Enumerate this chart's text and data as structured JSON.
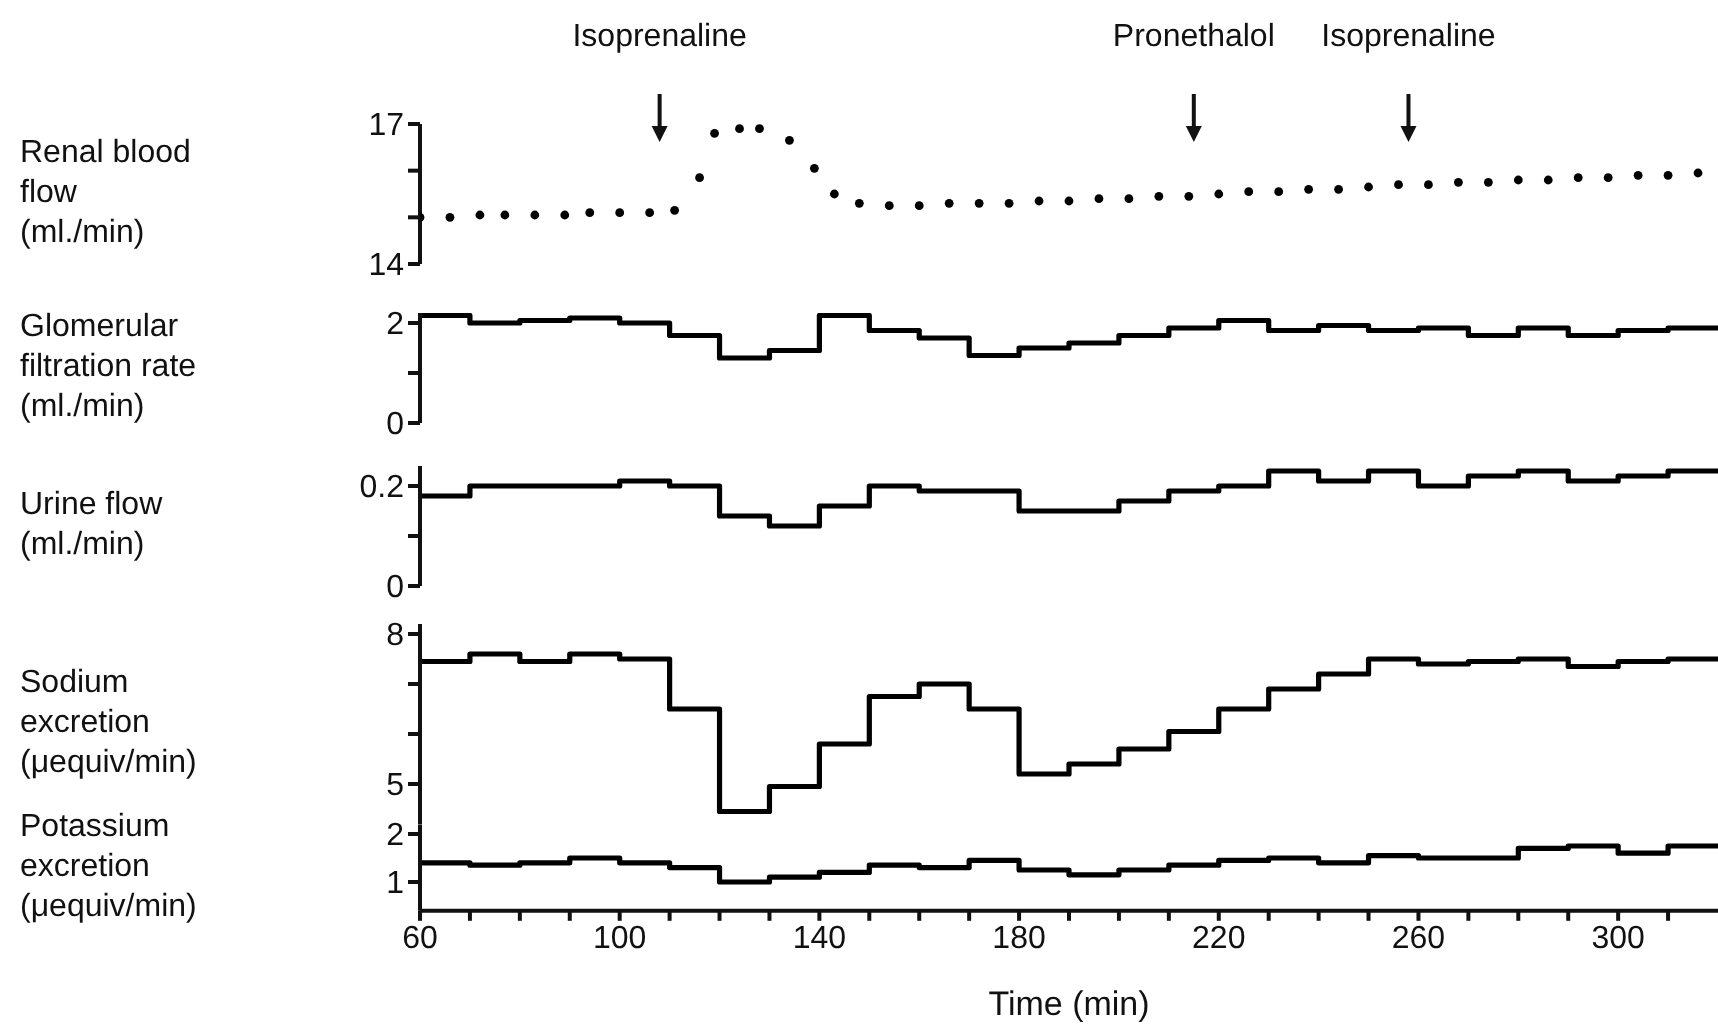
{
  "chart_data": [
    {
      "type": "scatter",
      "ylabel": "Renal blood flow (ml./min)",
      "marker": "circle",
      "tick_labels": "y",
      "xlim": [
        60,
        320
      ],
      "ylim": [
        14,
        17
      ],
      "yticks": [
        14,
        {
          "value": 15,
          "label": null
        },
        {
          "value": 16,
          "label": null
        },
        17
      ],
      "ref_lines": [
        {
          "axis": "x",
          "value": 108,
          "label": "Isoprenaline"
        },
        {
          "axis": "x",
          "value": 215,
          "label": "Pronethalol"
        },
        {
          "axis": "x",
          "value": 258,
          "label": "Isoprenaline"
        }
      ],
      "series": [
        {
          "color": "#000000",
          "x": [
            60,
            66,
            72,
            77,
            83,
            89,
            94,
            100,
            106,
            111,
            116,
            119,
            124,
            128,
            134,
            139,
            143,
            148,
            154,
            160,
            166,
            172,
            178,
            184,
            190,
            196,
            202,
            208,
            214,
            220,
            226,
            232,
            238,
            244,
            250,
            256,
            262,
            268,
            274,
            280,
            286,
            292,
            298,
            304,
            310,
            316
          ],
          "values": [
            15.0,
            15.0,
            15.05,
            15.05,
            15.05,
            15.05,
            15.1,
            15.1,
            15.1,
            15.15,
            15.85,
            16.8,
            16.9,
            16.9,
            16.65,
            16.05,
            15.5,
            15.3,
            15.25,
            15.25,
            15.3,
            15.3,
            15.3,
            15.35,
            15.35,
            15.4,
            15.4,
            15.45,
            15.45,
            15.5,
            15.55,
            15.55,
            15.6,
            15.6,
            15.65,
            15.7,
            15.7,
            15.75,
            15.75,
            15.8,
            15.8,
            15.85,
            15.85,
            15.9,
            15.9,
            15.95
          ]
        }
      ]
    },
    {
      "type": "step",
      "ylabel": "Glomerular filtration rate (ml./min)",
      "tick_labels": "y",
      "xlim": [
        60,
        320
      ],
      "ylim": [
        0,
        2.2
      ],
      "yticks": [
        0,
        {
          "value": 1,
          "label": null
        },
        2
      ],
      "x": [
        60,
        70,
        80,
        90,
        100,
        110,
        120,
        130,
        140,
        150,
        160,
        170,
        180,
        190,
        200,
        210,
        220,
        230,
        240,
        250,
        260,
        270,
        280,
        290,
        300,
        310,
        320
      ],
      "series": [
        {
          "color": "#000000",
          "values": [
            2.15,
            2.0,
            2.05,
            2.1,
            2.0,
            1.75,
            1.3,
            1.45,
            2.15,
            1.85,
            1.7,
            1.35,
            1.5,
            1.6,
            1.75,
            1.9,
            2.05,
            1.85,
            1.95,
            1.85,
            1.9,
            1.75,
            1.9,
            1.75,
            1.85,
            1.9,
            1.9
          ]
        }
      ]
    },
    {
      "type": "step",
      "ylabel": "Urine flow (ml./min)",
      "tick_labels": "y",
      "xlim": [
        60,
        320
      ],
      "ylim": [
        0,
        0.24
      ],
      "yticks": [
        0,
        {
          "value": 0.1,
          "label": null
        },
        0.2
      ],
      "x": [
        60,
        70,
        80,
        90,
        100,
        110,
        120,
        130,
        140,
        150,
        160,
        170,
        180,
        190,
        200,
        210,
        220,
        230,
        240,
        250,
        260,
        270,
        280,
        290,
        300,
        310,
        320
      ],
      "series": [
        {
          "color": "#000000",
          "values": [
            0.18,
            0.2,
            0.2,
            0.2,
            0.21,
            0.2,
            0.14,
            0.12,
            0.16,
            0.2,
            0.19,
            0.19,
            0.15,
            0.15,
            0.17,
            0.19,
            0.2,
            0.23,
            0.21,
            0.23,
            0.2,
            0.22,
            0.23,
            0.21,
            0.22,
            0.23,
            0.23
          ]
        }
      ]
    },
    {
      "type": "step",
      "ylabel": "Sodium excretion (μequiv/min)",
      "tick_labels": "y",
      "xlim": [
        60,
        320
      ],
      "ylim": [
        4.2,
        8.2
      ],
      "yticks": [
        5,
        {
          "value": 6,
          "label": null
        },
        {
          "value": 7,
          "label": null
        },
        8
      ],
      "x": [
        60,
        70,
        80,
        90,
        100,
        110,
        120,
        130,
        140,
        150,
        160,
        170,
        180,
        190,
        200,
        210,
        220,
        230,
        240,
        250,
        260,
        270,
        280,
        290,
        300,
        310,
        320
      ],
      "series": [
        {
          "color": "#000000",
          "values": [
            7.45,
            7.6,
            7.45,
            7.6,
            7.5,
            6.5,
            4.45,
            4.95,
            5.8,
            6.75,
            7.0,
            6.5,
            5.2,
            5.4,
            5.7,
            6.05,
            6.5,
            6.9,
            7.2,
            7.5,
            7.4,
            7.45,
            7.5,
            7.35,
            7.45,
            7.5,
            7.5
          ]
        }
      ]
    },
    {
      "type": "step",
      "ylabel": "Potassium excretion (μequiv/min)",
      "xlabel": "Time (min)",
      "xlim": [
        60,
        320
      ],
      "ylim": [
        0.4,
        2.2
      ],
      "yticks": [
        1,
        2
      ],
      "xticks": [
        60,
        {
          "value": 70,
          "label": null
        },
        {
          "value": 80,
          "label": null
        },
        {
          "value": 90,
          "label": null
        },
        100,
        {
          "value": 110,
          "label": null
        },
        {
          "value": 120,
          "label": null
        },
        {
          "value": 130,
          "label": null
        },
        140,
        {
          "value": 150,
          "label": null
        },
        {
          "value": 160,
          "label": null
        },
        {
          "value": 170,
          "label": null
        },
        180,
        {
          "value": 190,
          "label": null
        },
        {
          "value": 200,
          "label": null
        },
        {
          "value": 210,
          "label": null
        },
        220,
        {
          "value": 230,
          "label": null
        },
        {
          "value": 240,
          "label": null
        },
        {
          "value": 250,
          "label": null
        },
        260,
        {
          "value": 270,
          "label": null
        },
        {
          "value": 280,
          "label": null
        },
        {
          "value": 290,
          "label": null
        },
        300,
        {
          "value": 310,
          "label": null
        }
      ],
      "x": [
        60,
        70,
        80,
        90,
        100,
        110,
        120,
        130,
        140,
        150,
        160,
        170,
        180,
        190,
        200,
        210,
        220,
        230,
        240,
        250,
        260,
        270,
        280,
        290,
        300,
        310,
        320
      ],
      "series": [
        {
          "color": "#000000",
          "values": [
            1.4,
            1.35,
            1.4,
            1.5,
            1.4,
            1.3,
            1.0,
            1.1,
            1.2,
            1.35,
            1.3,
            1.45,
            1.25,
            1.15,
            1.25,
            1.35,
            1.45,
            1.5,
            1.4,
            1.55,
            1.5,
            1.5,
            1.7,
            1.75,
            1.6,
            1.75,
            1.75
          ]
        }
      ]
    }
  ]
}
